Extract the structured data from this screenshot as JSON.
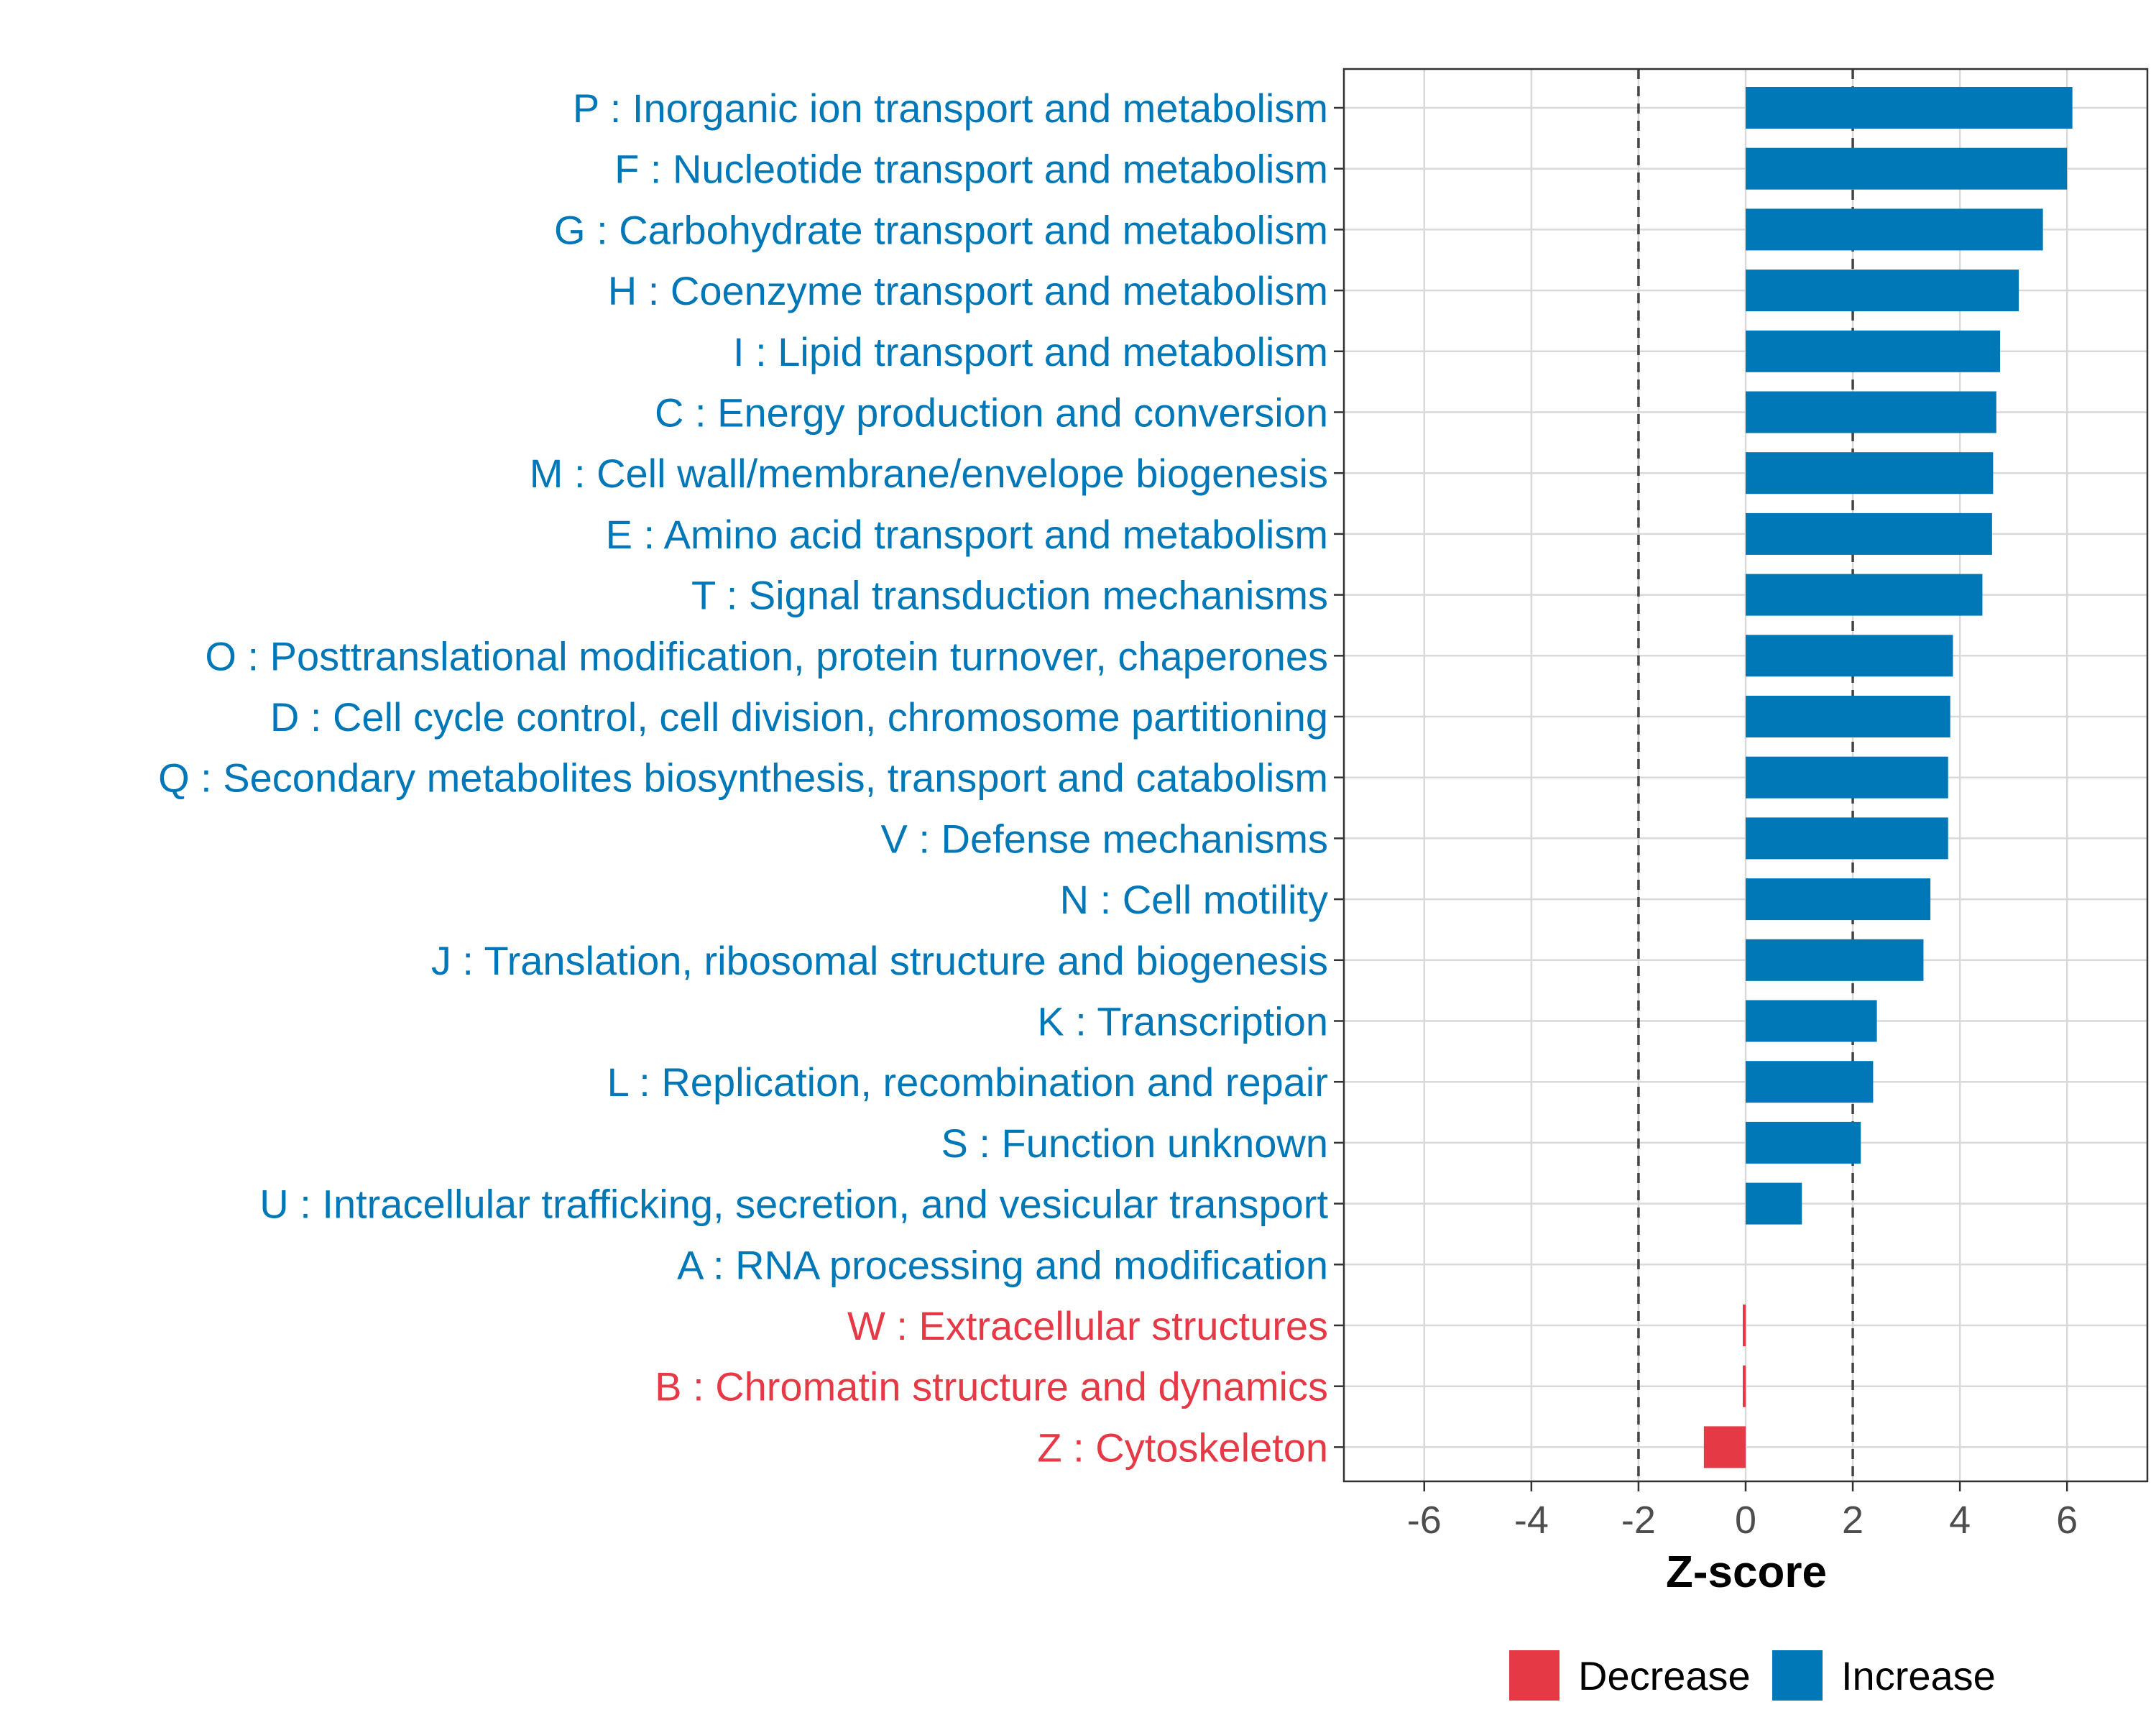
{
  "chart_data": {
    "type": "bar",
    "orientation": "horizontal",
    "title": "",
    "xlabel": "Z-score",
    "ylabel": "",
    "xlim": [
      -7.5,
      7.5
    ],
    "x_ticks": [
      -6,
      -4,
      -2,
      0,
      2,
      4,
      6
    ],
    "x_tick_labels": [
      "-6",
      "-4",
      "-2",
      "0",
      "2",
      "4",
      "6"
    ],
    "threshold_lines": [
      -2,
      2
    ],
    "grid": true,
    "legend_position": "bottom",
    "legend": [
      {
        "label": "Decrease",
        "color": "#E63946"
      },
      {
        "label": "Increase",
        "color": "#0077B6"
      }
    ],
    "categories": [
      "P : Inorganic ion transport and metabolism",
      "F : Nucleotide transport and metabolism",
      "G : Carbohydrate transport and metabolism",
      "H : Coenzyme transport and metabolism",
      "I : Lipid transport and metabolism",
      "C : Energy production and conversion",
      "M : Cell wall/membrane/envelope biogenesis",
      "E : Amino acid transport and metabolism",
      "T : Signal transduction mechanisms",
      "O : Posttranslational modification, protein turnover, chaperones",
      "D : Cell cycle control, cell division, chromosome partitioning",
      "Q : Secondary metabolites biosynthesis, transport and catabolism",
      "V : Defense mechanisms",
      "N : Cell motility",
      "J : Translation, ribosomal structure and biogenesis",
      "K : Transcription",
      "L : Replication, recombination and repair",
      "S : Function unknown",
      "U : Intracellular trafficking, secretion, and vesicular transport",
      "A : RNA processing and modification",
      "W : Extracellular structures",
      "B : Chromatin structure and dynamics",
      "Z : Cytoskeleton"
    ],
    "values": [
      6.1,
      6.0,
      5.55,
      5.1,
      4.75,
      4.68,
      4.62,
      4.6,
      4.42,
      3.87,
      3.82,
      3.78,
      3.78,
      3.45,
      3.32,
      2.45,
      2.38,
      2.15,
      1.05,
      0.0,
      -0.05,
      -0.05,
      -0.78
    ],
    "direction": [
      "Increase",
      "Increase",
      "Increase",
      "Increase",
      "Increase",
      "Increase",
      "Increase",
      "Increase",
      "Increase",
      "Increase",
      "Increase",
      "Increase",
      "Increase",
      "Increase",
      "Increase",
      "Increase",
      "Increase",
      "Increase",
      "Increase",
      "Increase",
      "Decrease",
      "Decrease",
      "Decrease"
    ]
  }
}
